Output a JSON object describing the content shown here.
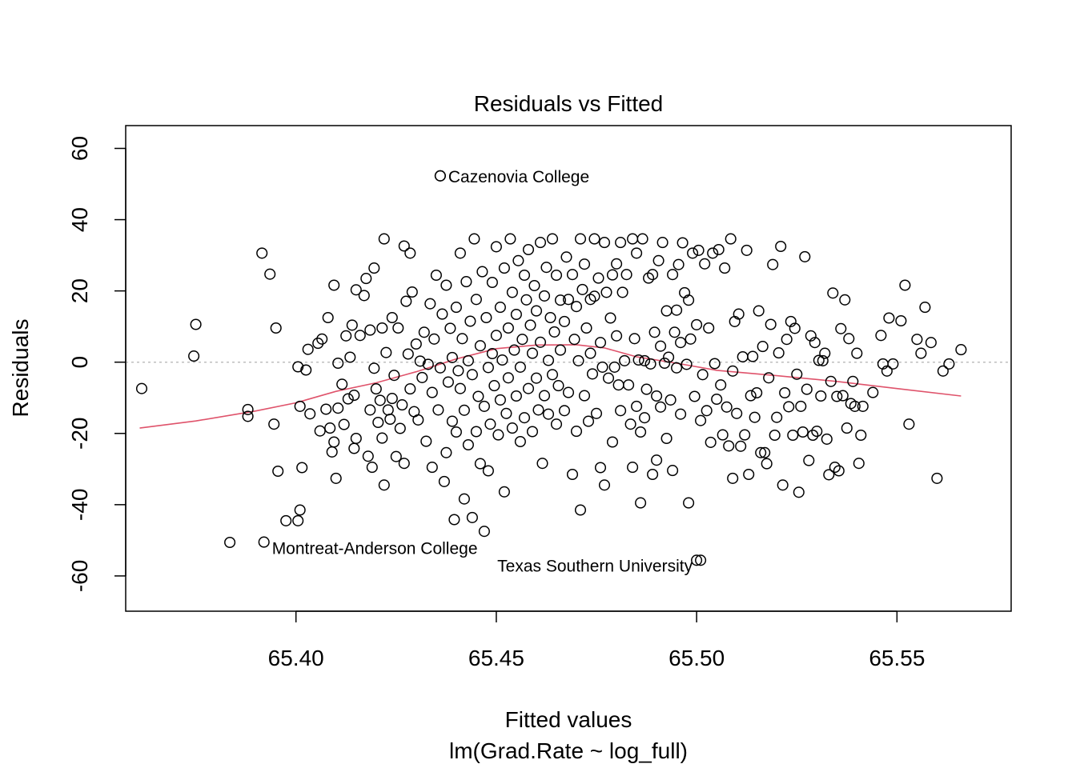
{
  "chart_data": {
    "type": "scatter",
    "title": "Residuals vs Fitted",
    "xlabel": "Fitted values",
    "subtitle": "lm(Grad.Rate ~ log_full)",
    "ylabel": "Residuals",
    "xlim": [
      65.3575,
      65.5785
    ],
    "ylim": [
      -69.9,
      66.4
    ],
    "x_ticks": [
      {
        "value": 65.4,
        "label": "65.40"
      },
      {
        "value": 65.45,
        "label": "65.45"
      },
      {
        "value": 65.5,
        "label": "65.50"
      },
      {
        "value": 65.55,
        "label": "65.55"
      }
    ],
    "y_ticks": [
      {
        "value": -60,
        "label": "-60"
      },
      {
        "value": -40,
        "label": "-40"
      },
      {
        "value": -20,
        "label": "-20"
      },
      {
        "value": 0,
        "label": "0"
      },
      {
        "value": 20,
        "label": "20"
      },
      {
        "value": 40,
        "label": "40"
      },
      {
        "value": 60,
        "label": "60"
      }
    ],
    "reference_line_y": 0,
    "grid": false,
    "colors": {
      "points": "#000000",
      "smooth": "#DF536B",
      "reference": "#BEBEBE"
    },
    "smooth_line": [
      [
        65.361,
        -18.5
      ],
      [
        65.375,
        -16.5
      ],
      [
        65.39,
        -13.7
      ],
      [
        65.4,
        -11.4
      ],
      [
        65.41,
        -8.2
      ],
      [
        65.42,
        -5.8
      ],
      [
        65.43,
        -2.7
      ],
      [
        65.44,
        0.9
      ],
      [
        65.45,
        3.8
      ],
      [
        65.46,
        4.8
      ],
      [
        65.47,
        4.9
      ],
      [
        65.477,
        4.0
      ],
      [
        65.485,
        1.5
      ],
      [
        65.495,
        -0.3
      ],
      [
        65.505,
        -2.3
      ],
      [
        65.52,
        -3.8
      ],
      [
        65.535,
        -5.4
      ],
      [
        65.55,
        -7.4
      ],
      [
        65.566,
        -9.5
      ]
    ],
    "labeled_points": [
      {
        "x": 65.436,
        "y": 52.3,
        "label": "Cazenovia College",
        "side": "right"
      },
      {
        "x": 65.392,
        "y": -50.5,
        "label": "Montreat-Anderson College",
        "side": "below-right"
      },
      {
        "x": 65.501,
        "y": -55.6,
        "label": "Texas Southern University",
        "side": "left"
      }
    ],
    "points": [
      [
        65.3615,
        -7.4
      ],
      [
        65.3745,
        1.7
      ],
      [
        65.375,
        10.6
      ],
      [
        65.3835,
        -50.6
      ],
      [
        65.388,
        -13.3
      ],
      [
        65.388,
        -15.2
      ],
      [
        65.3915,
        30.6
      ],
      [
        65.3935,
        24.7
      ],
      [
        65.3945,
        -17.4
      ],
      [
        65.395,
        9.6
      ],
      [
        65.3955,
        -30.6
      ],
      [
        65.3975,
        -44.5
      ],
      [
        65.4005,
        -1.3
      ],
      [
        65.4005,
        -44.5
      ],
      [
        65.401,
        -41.5
      ],
      [
        65.401,
        -12.4
      ],
      [
        65.4015,
        -29.6
      ],
      [
        65.4025,
        -2.2
      ],
      [
        65.403,
        3.6
      ],
      [
        65.4035,
        -14.5
      ],
      [
        65.4055,
        5.3
      ],
      [
        65.406,
        -19.3
      ],
      [
        65.4065,
        6.5
      ],
      [
        65.4075,
        -13.2
      ],
      [
        65.408,
        12.5
      ],
      [
        65.4085,
        -18.5
      ],
      [
        65.409,
        -25.2
      ],
      [
        65.4095,
        -22.4
      ],
      [
        65.4095,
        21.6
      ],
      [
        65.41,
        -32.6
      ],
      [
        65.4105,
        -0.3
      ],
      [
        65.4105,
        -12.9
      ],
      [
        65.4115,
        -6.2
      ],
      [
        65.412,
        -17.5
      ],
      [
        65.4125,
        7.4
      ],
      [
        65.413,
        -10.3
      ],
      [
        65.4135,
        1.4
      ],
      [
        65.414,
        10.4
      ],
      [
        65.4145,
        -24.2
      ],
      [
        65.4145,
        -9.3
      ],
      [
        65.415,
        20.3
      ],
      [
        65.415,
        -21.4
      ],
      [
        65.416,
        7.5
      ],
      [
        65.417,
        18.7
      ],
      [
        65.4175,
        23.5
      ],
      [
        65.418,
        -26.4
      ],
      [
        65.4185,
        -13.4
      ],
      [
        65.4185,
        9.0
      ],
      [
        65.419,
        -29.5
      ],
      [
        65.4195,
        26.4
      ],
      [
        65.4195,
        -1.7
      ],
      [
        65.42,
        -7.5
      ],
      [
        65.4205,
        -16.9
      ],
      [
        65.421,
        -10.7
      ],
      [
        65.4215,
        9.6
      ],
      [
        65.4215,
        -21.3
      ],
      [
        65.422,
        34.6
      ],
      [
        65.422,
        -34.5
      ],
      [
        65.4225,
        2.7
      ],
      [
        65.423,
        -13.4
      ],
      [
        65.4235,
        -16.0
      ],
      [
        65.424,
        -10.2
      ],
      [
        65.424,
        12.5
      ],
      [
        65.4245,
        -3.7
      ],
      [
        65.425,
        -26.5
      ],
      [
        65.4255,
        9.6
      ],
      [
        65.426,
        -18.6
      ],
      [
        65.4265,
        -12.0
      ],
      [
        65.427,
        32.6
      ],
      [
        65.427,
        -28.4
      ],
      [
        65.4275,
        17.1
      ],
      [
        65.428,
        2.3
      ],
      [
        65.4285,
        30.6
      ],
      [
        65.4285,
        -7.5
      ],
      [
        65.429,
        19.7
      ],
      [
        65.4295,
        -13.9
      ],
      [
        65.43,
        5.1
      ],
      [
        65.4305,
        -16.2
      ],
      [
        65.431,
        0.3
      ],
      [
        65.4315,
        -4.3
      ],
      [
        65.432,
        8.4
      ],
      [
        65.4325,
        -22.2
      ],
      [
        65.433,
        -0.6
      ],
      [
        65.4335,
        16.4
      ],
      [
        65.434,
        -8.5
      ],
      [
        65.434,
        -29.5
      ],
      [
        65.4345,
        6.5
      ],
      [
        65.435,
        24.4
      ],
      [
        65.4355,
        -13.4
      ],
      [
        65.436,
        52.3
      ],
      [
        65.436,
        -1.6
      ],
      [
        65.4365,
        13.5
      ],
      [
        65.437,
        -33.5
      ],
      [
        65.4375,
        21.6
      ],
      [
        65.4375,
        -25.4
      ],
      [
        65.438,
        -5.6
      ],
      [
        65.4385,
        9.5
      ],
      [
        65.439,
        -16.6
      ],
      [
        65.439,
        1.3
      ],
      [
        65.4395,
        -44.2
      ],
      [
        65.44,
        15.4
      ],
      [
        65.44,
        -19.6
      ],
      [
        65.4405,
        -2.4
      ],
      [
        65.441,
        30.6
      ],
      [
        65.441,
        -7.4
      ],
      [
        65.4415,
        6.6
      ],
      [
        65.442,
        -13.5
      ],
      [
        65.442,
        -38.4
      ],
      [
        65.4425,
        22.6
      ],
      [
        65.443,
        -23.2
      ],
      [
        65.443,
        0.4
      ],
      [
        65.4435,
        11.5
      ],
      [
        65.444,
        -43.6
      ],
      [
        65.444,
        -3.5
      ],
      [
        65.4445,
        34.6
      ],
      [
        65.445,
        17.6
      ],
      [
        65.445,
        -19.5
      ],
      [
        65.4455,
        -9.6
      ],
      [
        65.446,
        4.6
      ],
      [
        65.446,
        -28.5
      ],
      [
        65.4465,
        25.4
      ],
      [
        65.447,
        -12.4
      ],
      [
        65.447,
        -47.5
      ],
      [
        65.4475,
        12.5
      ],
      [
        65.448,
        -1.5
      ],
      [
        65.448,
        -30.5
      ],
      [
        65.4485,
        -17.4
      ],
      [
        65.449,
        22.4
      ],
      [
        65.449,
        2.4
      ],
      [
        65.4495,
        -6.6
      ],
      [
        65.45,
        32.4
      ],
      [
        65.45,
        7.5
      ],
      [
        65.4505,
        -20.4
      ],
      [
        65.451,
        15.4
      ],
      [
        65.451,
        -10.6
      ],
      [
        65.4515,
        0.6
      ],
      [
        65.452,
        26.4
      ],
      [
        65.452,
        -36.4
      ],
      [
        65.4525,
        -14.4
      ],
      [
        65.453,
        9.6
      ],
      [
        65.453,
        -4.4
      ],
      [
        65.4535,
        34.6
      ],
      [
        65.454,
        19.6
      ],
      [
        65.454,
        -18.5
      ],
      [
        65.4545,
        3.4
      ],
      [
        65.455,
        -9.5
      ],
      [
        65.455,
        13.4
      ],
      [
        65.4555,
        28.5
      ],
      [
        65.456,
        -22.3
      ],
      [
        65.456,
        -1.4
      ],
      [
        65.4565,
        6.4
      ],
      [
        65.457,
        24.4
      ],
      [
        65.457,
        -15.6
      ],
      [
        65.4575,
        17.5
      ],
      [
        65.458,
        -7.4
      ],
      [
        65.458,
        31.6
      ],
      [
        65.4585,
        10.4
      ],
      [
        65.459,
        -19.5
      ],
      [
        65.459,
        2.5
      ],
      [
        65.4595,
        21.5
      ],
      [
        65.46,
        -4.5
      ],
      [
        65.46,
        14.4
      ],
      [
        65.4605,
        -13.4
      ],
      [
        65.461,
        33.6
      ],
      [
        65.461,
        5.6
      ],
      [
        65.4615,
        -28.4
      ],
      [
        65.462,
        18.6
      ],
      [
        65.462,
        -9.4
      ],
      [
        65.4625,
        26.6
      ],
      [
        65.463,
        -14.6
      ],
      [
        65.463,
        0.5
      ],
      [
        65.4635,
        12.5
      ],
      [
        65.464,
        -3.5
      ],
      [
        65.464,
        34.6
      ],
      [
        65.4645,
        8.5
      ],
      [
        65.465,
        -17.4
      ],
      [
        65.465,
        24.4
      ],
      [
        65.4655,
        -6.6
      ],
      [
        65.466,
        17.4
      ],
      [
        65.466,
        3.4
      ],
      [
        65.467,
        11.4
      ],
      [
        65.467,
        -13.6
      ],
      [
        65.4675,
        29.5
      ],
      [
        65.468,
        -8.5
      ],
      [
        65.468,
        17.6
      ],
      [
        65.469,
        24.6
      ],
      [
        65.469,
        -31.5
      ],
      [
        65.4695,
        6.4
      ],
      [
        65.47,
        -19.4
      ],
      [
        65.47,
        15.6
      ],
      [
        65.4705,
        0.4
      ],
      [
        65.471,
        34.6
      ],
      [
        65.471,
        -41.5
      ],
      [
        65.4715,
        20.4
      ],
      [
        65.472,
        -9.4
      ],
      [
        65.472,
        27.5
      ],
      [
        65.4725,
        9.6
      ],
      [
        65.473,
        -16.6
      ],
      [
        65.4735,
        17.6
      ],
      [
        65.4735,
        2.5
      ],
      [
        65.474,
        -3.3
      ],
      [
        65.4745,
        34.6
      ],
      [
        65.4745,
        18.5
      ],
      [
        65.475,
        -14.4
      ],
      [
        65.4755,
        23.6
      ],
      [
        65.476,
        5.5
      ],
      [
        65.476,
        -29.6
      ],
      [
        65.4765,
        -1.4
      ],
      [
        65.477,
        33.6
      ],
      [
        65.477,
        -34.5
      ],
      [
        65.4775,
        19.6
      ],
      [
        65.478,
        -4.5
      ],
      [
        65.4785,
        12.4
      ],
      [
        65.479,
        -22.4
      ],
      [
        65.479,
        24.5
      ],
      [
        65.4795,
        -1.4
      ],
      [
        65.48,
        7.4
      ],
      [
        65.48,
        27.6
      ],
      [
        65.4805,
        -6.4
      ],
      [
        65.481,
        33.6
      ],
      [
        65.481,
        -13.6
      ],
      [
        65.4815,
        19.6
      ],
      [
        65.482,
        0.4
      ],
      [
        65.4825,
        24.6
      ],
      [
        65.483,
        -6.4
      ],
      [
        65.4835,
        -17.4
      ],
      [
        65.484,
        34.6
      ],
      [
        65.484,
        -29.5
      ],
      [
        65.4845,
        6.6
      ],
      [
        65.485,
        30.6
      ],
      [
        65.485,
        -12.4
      ],
      [
        65.4855,
        0.6
      ],
      [
        65.486,
        -19.6
      ],
      [
        65.486,
        -39.5
      ],
      [
        65.4865,
        34.6
      ],
      [
        65.487,
        0.4
      ],
      [
        65.487,
        -15.6
      ],
      [
        65.4875,
        -7.6
      ],
      [
        65.488,
        23.6
      ],
      [
        65.4885,
        -0.5
      ],
      [
        65.489,
        24.6
      ],
      [
        65.489,
        -31.5
      ],
      [
        65.4895,
        8.4
      ],
      [
        65.49,
        -9.5
      ],
      [
        65.49,
        -27.5
      ],
      [
        65.4905,
        28.5
      ],
      [
        65.491,
        4.5
      ],
      [
        65.491,
        -12.6
      ],
      [
        65.4915,
        33.6
      ],
      [
        65.492,
        -0.3
      ],
      [
        65.4925,
        14.4
      ],
      [
        65.4925,
        -21.4
      ],
      [
        65.493,
        1.4
      ],
      [
        65.4935,
        -10.6
      ],
      [
        65.494,
        24.6
      ],
      [
        65.494,
        -30.4
      ],
      [
        65.4945,
        8.4
      ],
      [
        65.495,
        -1.6
      ],
      [
        65.495,
        14.6
      ],
      [
        65.4955,
        27.4
      ],
      [
        65.496,
        -14.6
      ],
      [
        65.496,
        5.5
      ],
      [
        65.4965,
        33.5
      ],
      [
        65.497,
        19.5
      ],
      [
        65.4975,
        -0.6
      ],
      [
        65.498,
        -39.5
      ],
      [
        65.498,
        17.4
      ],
      [
        65.4985,
        6.5
      ],
      [
        65.499,
        30.6
      ],
      [
        65.4995,
        -9.6
      ],
      [
        65.5,
        10.5
      ],
      [
        65.5,
        -55.6
      ],
      [
        65.5005,
        31.4
      ],
      [
        65.501,
        -16.4
      ],
      [
        65.5015,
        -3.5
      ],
      [
        65.502,
        27.6
      ],
      [
        65.5025,
        -13.6
      ],
      [
        65.503,
        9.6
      ],
      [
        65.5035,
        -22.5
      ],
      [
        65.504,
        30.6
      ],
      [
        65.5045,
        -0.4
      ],
      [
        65.505,
        -10.4
      ],
      [
        65.5055,
        31.6
      ],
      [
        65.506,
        -6.4
      ],
      [
        65.5065,
        -20.4
      ],
      [
        65.507,
        26.4
      ],
      [
        65.5075,
        -12.6
      ],
      [
        65.508,
        -23.5
      ],
      [
        65.5085,
        34.6
      ],
      [
        65.509,
        -32.6
      ],
      [
        65.509,
        -2.5
      ],
      [
        65.5095,
        11.4
      ],
      [
        65.51,
        -14.4
      ],
      [
        65.5105,
        13.5
      ],
      [
        65.511,
        -23.6
      ],
      [
        65.5115,
        1.5
      ],
      [
        65.512,
        -20.4
      ],
      [
        65.5125,
        31.4
      ],
      [
        65.513,
        -31.5
      ],
      [
        65.5135,
        -9.4
      ],
      [
        65.514,
        1.6
      ],
      [
        65.5145,
        -15.5
      ],
      [
        65.515,
        -8.6
      ],
      [
        65.5155,
        14.4
      ],
      [
        65.516,
        -25.4
      ],
      [
        65.5165,
        4.4
      ],
      [
        65.517,
        -25.4
      ],
      [
        65.5175,
        -28.5
      ],
      [
        65.518,
        -4.4
      ],
      [
        65.5185,
        10.6
      ],
      [
        65.519,
        27.4
      ],
      [
        65.5195,
        -20.5
      ],
      [
        65.52,
        -15.5
      ],
      [
        65.5205,
        2.6
      ],
      [
        65.521,
        32.5
      ],
      [
        65.5215,
        -34.5
      ],
      [
        65.522,
        -8.6
      ],
      [
        65.5225,
        6.4
      ],
      [
        65.523,
        -12.5
      ],
      [
        65.5235,
        11.4
      ],
      [
        65.524,
        -20.5
      ],
      [
        65.5245,
        9.5
      ],
      [
        65.525,
        -3.4
      ],
      [
        65.5255,
        -36.5
      ],
      [
        65.526,
        -12.4
      ],
      [
        65.5265,
        -19.6
      ],
      [
        65.527,
        29.6
      ],
      [
        65.5275,
        -7.6
      ],
      [
        65.528,
        -27.6
      ],
      [
        65.5285,
        7.4
      ],
      [
        65.529,
        -20.5
      ],
      [
        65.5295,
        5.5
      ],
      [
        65.53,
        -19.4
      ],
      [
        65.5305,
        0.5
      ],
      [
        65.531,
        -9.5
      ],
      [
        65.5315,
        0.4
      ],
      [
        65.532,
        2.5
      ],
      [
        65.5325,
        -21.6
      ],
      [
        65.533,
        -31.6
      ],
      [
        65.5335,
        -5.4
      ],
      [
        65.534,
        19.4
      ],
      [
        65.5345,
        -29.5
      ],
      [
        65.535,
        -9.6
      ],
      [
        65.5355,
        -30.5
      ],
      [
        65.536,
        9.4
      ],
      [
        65.5365,
        -9.4
      ],
      [
        65.537,
        17.5
      ],
      [
        65.5375,
        -18.5
      ],
      [
        65.538,
        6.6
      ],
      [
        65.5385,
        -11.6
      ],
      [
        65.539,
        -5.4
      ],
      [
        65.5395,
        -12.4
      ],
      [
        65.54,
        2.5
      ],
      [
        65.5405,
        -28.4
      ],
      [
        65.541,
        -20.5
      ],
      [
        65.5415,
        -12.4
      ],
      [
        65.544,
        -8.5
      ],
      [
        65.546,
        7.5
      ],
      [
        65.5465,
        -0.5
      ],
      [
        65.5475,
        -2.5
      ],
      [
        65.548,
        12.4
      ],
      [
        65.549,
        -0.5
      ],
      [
        65.551,
        11.6
      ],
      [
        65.552,
        21.6
      ],
      [
        65.553,
        -17.4
      ],
      [
        65.555,
        6.4
      ],
      [
        65.556,
        2.5
      ],
      [
        65.557,
        15.4
      ],
      [
        65.5585,
        5.5
      ],
      [
        65.56,
        -32.6
      ],
      [
        65.5615,
        -2.5
      ],
      [
        65.563,
        -0.5
      ],
      [
        65.566,
        3.5
      ]
    ]
  }
}
